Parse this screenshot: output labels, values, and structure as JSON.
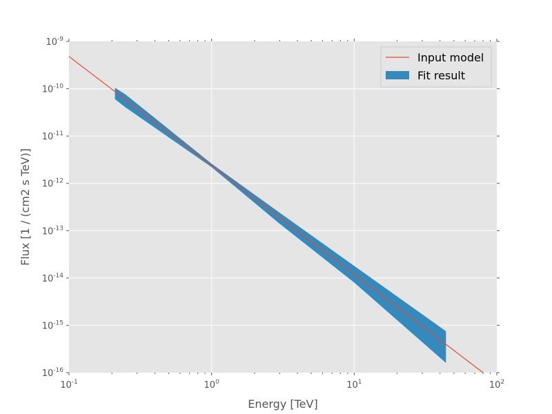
{
  "chart_data": {
    "type": "line",
    "xlabel": "Energy [TeV]",
    "ylabel": "Flux [1 / (cm2 s TeV)]",
    "x_scale": "log",
    "y_scale": "log",
    "xlim": [
      0.1,
      100
    ],
    "ylim": [
      1e-16,
      1e-09
    ],
    "x_ticks": [
      {
        "base": "10",
        "exp": "-1",
        "value": 0.1
      },
      {
        "base": "10",
        "exp": "0",
        "value": 1
      },
      {
        "base": "10",
        "exp": "1",
        "value": 10
      },
      {
        "base": "10",
        "exp": "2",
        "value": 100
      }
    ],
    "y_ticks": [
      {
        "base": "10",
        "exp": "-16",
        "value": 1e-16
      },
      {
        "base": "10",
        "exp": "-15",
        "value": 1e-15
      },
      {
        "base": "10",
        "exp": "-14",
        "value": 1e-14
      },
      {
        "base": "10",
        "exp": "-13",
        "value": 1e-13
      },
      {
        "base": "10",
        "exp": "-12",
        "value": 1e-12
      },
      {
        "base": "10",
        "exp": "-11",
        "value": 1e-11
      },
      {
        "base": "10",
        "exp": "-10",
        "value": 1e-10
      },
      {
        "base": "10",
        "exp": "-9",
        "value": 1e-09
      }
    ],
    "grid": true,
    "legend_position": "top-right",
    "series": [
      {
        "name": "Input model",
        "kind": "line",
        "color": "#e24a33",
        "x": [
          0.1,
          80
        ],
        "y": [
          4.8e-10,
          1e-16
        ]
      },
      {
        "name": "Fit result",
        "kind": "band",
        "color": "#348abd",
        "x": [
          0.21,
          0.25,
          1.0,
          3.0,
          10,
          44
        ],
        "y_lower": [
          6e-11,
          4e-11,
          2.2e-12,
          1.4e-13,
          8e-15,
          1.6e-16
        ],
        "y_upper": [
          1.05e-10,
          7.5e-11,
          2.6e-12,
          2.4e-13,
          1.8e-14,
          7.5e-16
        ]
      }
    ]
  }
}
